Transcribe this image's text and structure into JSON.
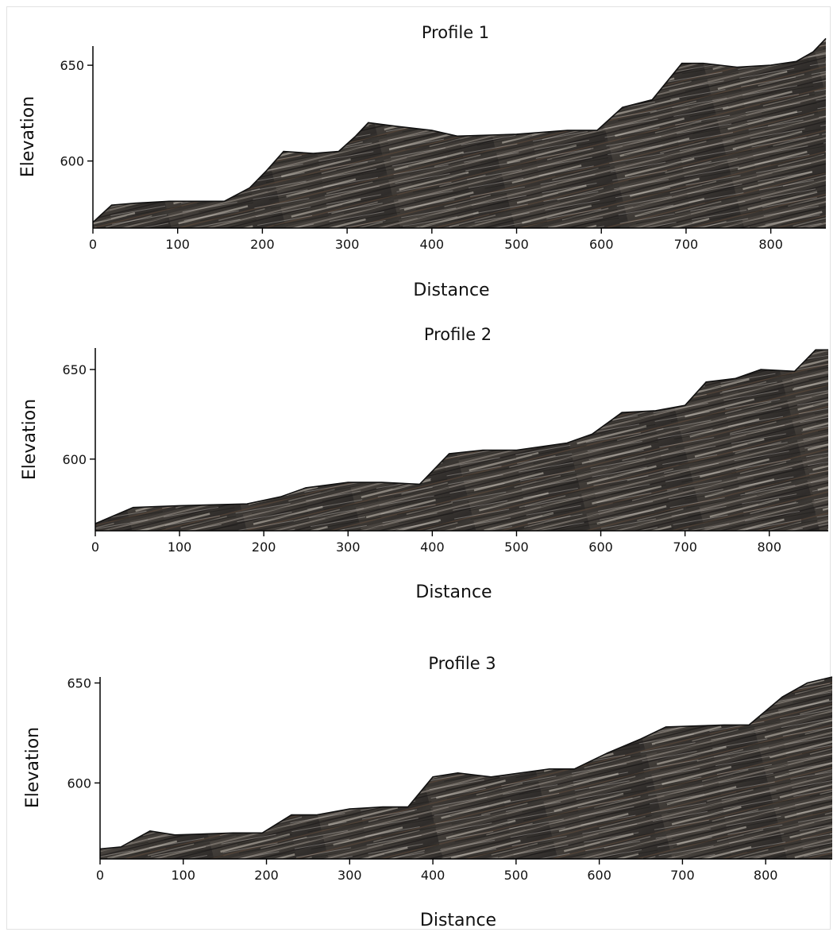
{
  "chart_data": [
    {
      "type": "area",
      "title": "Profile 1",
      "xlabel": "Distance",
      "ylabel": "Elevation",
      "xlim": [
        0,
        865
      ],
      "ylim": [
        565,
        660
      ],
      "xticks": [
        "0",
        "100",
        "200",
        "300",
        "400",
        "500",
        "600",
        "700",
        "800"
      ],
      "yticks": [
        "600",
        "650"
      ],
      "grid": false,
      "legend": "none",
      "series": [
        {
          "x": [
            0,
            22,
            50,
            90,
            120,
            155,
            185,
            205,
            225,
            260,
            290,
            310,
            325,
            360,
            400,
            430,
            500,
            560,
            595,
            625,
            660,
            695,
            720,
            760,
            800,
            830,
            850,
            865
          ],
          "y": [
            568,
            577,
            578,
            579,
            579,
            579,
            586,
            595,
            605,
            604,
            605,
            613,
            620,
            618,
            616,
            613,
            614,
            616,
            616,
            628,
            632,
            651,
            651,
            649,
            650,
            652,
            657,
            664
          ]
        }
      ]
    },
    {
      "type": "area",
      "title": "Profile 2",
      "xlabel": "Distance",
      "ylabel": "Elevation",
      "xlim": [
        0,
        870
      ],
      "ylim": [
        560,
        662
      ],
      "xticks": [
        "0",
        "100",
        "200",
        "300",
        "400",
        "500",
        "600",
        "700",
        "800"
      ],
      "yticks": [
        "600",
        "650"
      ],
      "grid": false,
      "legend": "none",
      "series": [
        {
          "x": [
            0,
            45,
            100,
            180,
            220,
            250,
            300,
            340,
            385,
            420,
            460,
            500,
            560,
            590,
            625,
            665,
            700,
            725,
            760,
            790,
            830,
            855,
            870
          ],
          "y": [
            564,
            573,
            574,
            575,
            579,
            584,
            587,
            587,
            586,
            603,
            605,
            605,
            609,
            614,
            626,
            627,
            630,
            643,
            645,
            650,
            649,
            661,
            661
          ]
        }
      ]
    },
    {
      "type": "area",
      "title": "Profile 3",
      "xlabel": "Distance",
      "ylabel": "Elevation",
      "xlim": [
        0,
        880
      ],
      "ylim": [
        562,
        653
      ],
      "xticks": [
        "0",
        "100",
        "200",
        "300",
        "400",
        "500",
        "600",
        "700",
        "800"
      ],
      "yticks": [
        "600",
        "650"
      ],
      "grid": false,
      "legend": "none",
      "series": [
        {
          "x": [
            0,
            25,
            60,
            90,
            160,
            195,
            230,
            260,
            300,
            340,
            370,
            400,
            430,
            470,
            540,
            570,
            610,
            650,
            680,
            750,
            780,
            820,
            850,
            880
          ],
          "y": [
            567,
            568,
            576,
            574,
            575,
            575,
            584,
            584,
            587,
            588,
            588,
            603,
            605,
            603,
            607,
            607,
            615,
            622,
            628,
            629,
            629,
            643,
            650,
            653
          ]
        }
      ]
    }
  ]
}
